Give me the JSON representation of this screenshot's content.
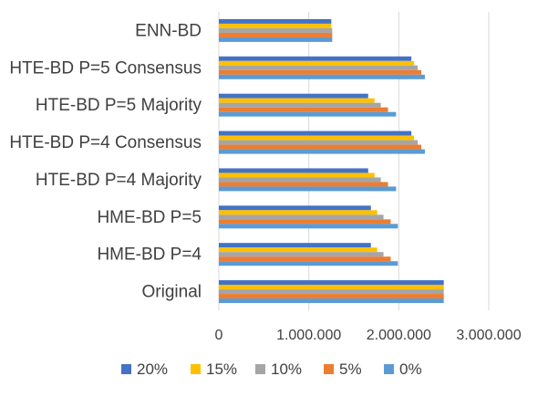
{
  "chart_data": {
    "type": "bar",
    "orientation": "horizontal",
    "categories": [
      "ENN-BD",
      "HTE-BD P=5 Consensus",
      "HTE-BD P=5 Majority",
      "HTE-BD P=4 Consensus",
      "HTE-BD P=4 Majority",
      "HME-BD P=5",
      "HME-BD P=4",
      "Original"
    ],
    "series": [
      {
        "name": "20%",
        "color": "#4472C4",
        "values": [
          1250000,
          2140000,
          1660000,
          2140000,
          1660000,
          1690000,
          1690000,
          2500000
        ]
      },
      {
        "name": "15%",
        "color": "#FFC000",
        "values": [
          1250000,
          2170000,
          1730000,
          2170000,
          1730000,
          1760000,
          1760000,
          2500000
        ]
      },
      {
        "name": "10%",
        "color": "#A5A5A5",
        "values": [
          1260000,
          2210000,
          1800000,
          2210000,
          1800000,
          1830000,
          1830000,
          2500000
        ]
      },
      {
        "name": "5%",
        "color": "#ED7D31",
        "values": [
          1260000,
          2250000,
          1880000,
          2250000,
          1880000,
          1910000,
          1910000,
          2500000
        ]
      },
      {
        "name": "0%",
        "color": "#5B9BD5",
        "values": [
          1260000,
          2290000,
          1970000,
          2290000,
          1970000,
          1990000,
          1990000,
          2500000
        ]
      }
    ],
    "x_ticks": [
      "0",
      "1.000.000",
      "2.000.000",
      "3.000.000"
    ],
    "xlim": [
      0,
      3000000
    ],
    "title": "",
    "xlabel": "",
    "ylabel": "",
    "grid": true,
    "legend_position": "bottom"
  }
}
